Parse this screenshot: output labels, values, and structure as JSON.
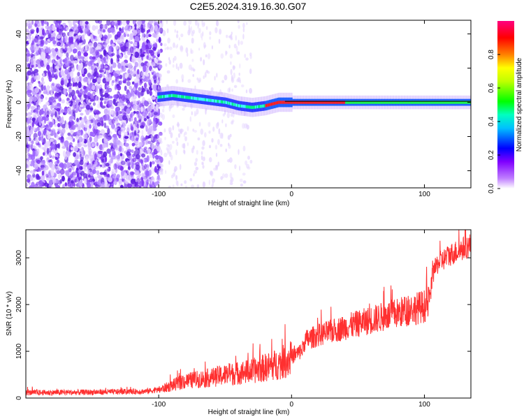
{
  "title": "C2E5.2024.319.16.30.G07",
  "chart_data": [
    {
      "type": "heatmap",
      "xlabel": "Height of straight line (km)",
      "ylabel": "Frequency (Hz)",
      "xlim": [
        -200,
        135
      ],
      "ylim": [
        -50,
        48
      ],
      "xticks": [
        -100,
        0,
        100
      ],
      "yticks": [
        -40,
        -20,
        0,
        20,
        40
      ],
      "colorbar": {
        "label": "Normalized spectral amplitude",
        "range": [
          0,
          1
        ],
        "ticks": [
          0.0,
          0.2,
          0.4,
          0.6,
          0.8
        ],
        "colormap": [
          "#ffffff",
          "#c080ff",
          "#0000ff",
          "#00ffff",
          "#00ff00",
          "#ffff00",
          "#ff8000",
          "#ff0000",
          "#ff00a0"
        ]
      },
      "noise_region_end": -100,
      "signal_start": -101,
      "signal_track": {
        "x": [
          -101,
          -90,
          -80,
          -70,
          -60,
          -50,
          -40,
          -30,
          -20,
          -10,
          0,
          10,
          20,
          40,
          60,
          80,
          100,
          135
        ],
        "frequency": [
          3,
          4,
          3,
          2,
          1,
          0,
          -2,
          -3,
          -2,
          0,
          0,
          0,
          0,
          0,
          0,
          0,
          0,
          0
        ]
      },
      "grid": false
    },
    {
      "type": "line",
      "xlabel": "Height of straight line (km)",
      "ylabel": "SNR (10 * v/v)",
      "xlim": [
        -200,
        135
      ],
      "ylim": [
        0,
        3600
      ],
      "xticks": [
        -100,
        0,
        100
      ],
      "yticks": [
        0,
        1000,
        2000,
        3000
      ],
      "color": "#ff3030",
      "series": [
        {
          "x": [
            -200,
            -150,
            -110,
            -100,
            -90,
            -80,
            -70,
            -60,
            -50,
            -40,
            -30,
            -20,
            -10,
            0,
            5,
            8,
            10,
            20,
            30,
            40,
            50,
            60,
            70,
            80,
            90,
            100,
            104,
            106,
            110,
            120,
            135
          ],
          "y": [
            120,
            130,
            150,
            180,
            280,
            380,
            420,
            460,
            520,
            560,
            600,
            680,
            760,
            900,
            980,
            1050,
            1250,
            1370,
            1450,
            1540,
            1620,
            1700,
            1780,
            1850,
            1930,
            2000,
            2100,
            2650,
            2900,
            3100,
            3300
          ]
        }
      ],
      "grid": false
    }
  ]
}
